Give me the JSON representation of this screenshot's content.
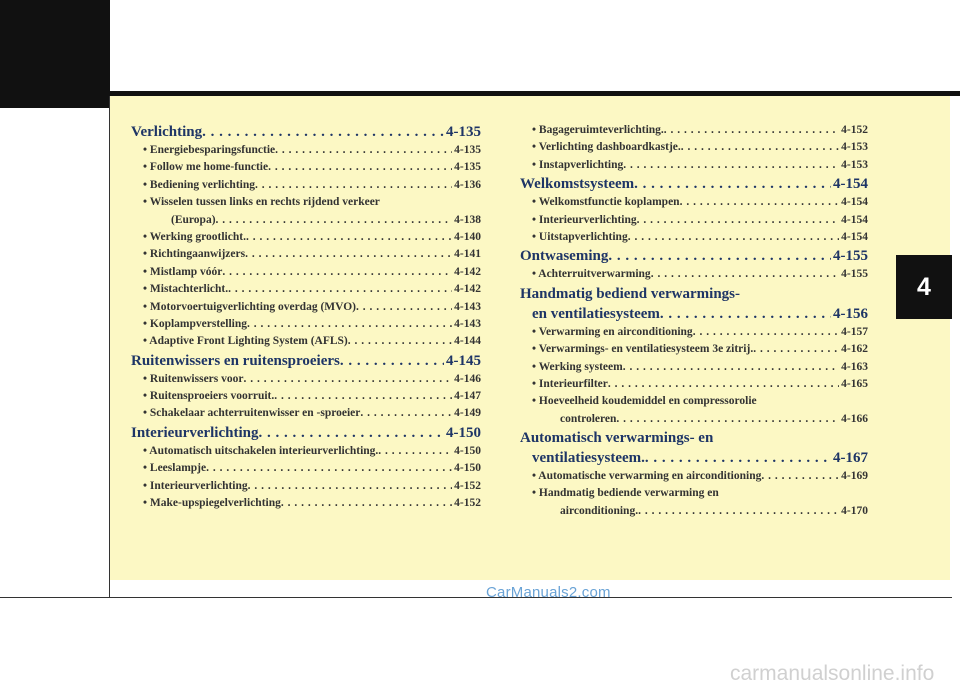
{
  "chapter_tab": "4",
  "left_column": [
    {
      "type": "heading",
      "label": "Verlichting",
      "page": "4-135"
    },
    {
      "type": "item",
      "label": "• Energiebesparingsfunctie",
      "page": "4-135"
    },
    {
      "type": "item",
      "label": "• Follow me home-functie",
      "page": "4-135"
    },
    {
      "type": "item",
      "label": "• Bediening verlichting",
      "page": "4-136"
    },
    {
      "type": "item-line1",
      "label": "• Wisselen tussen links en rechts rijdend verkeer"
    },
    {
      "type": "item-cont",
      "label": "(Europa)",
      "page": "4-138"
    },
    {
      "type": "item",
      "label": "• Werking grootlicht.",
      "page": "4-140"
    },
    {
      "type": "item",
      "label": "• Richtingaanwijzers",
      "page": "4-141"
    },
    {
      "type": "item",
      "label": "• Mistlamp vóór",
      "page": "4-142"
    },
    {
      "type": "item",
      "label": "• Mistachterlicht.",
      "page": "4-142"
    },
    {
      "type": "item",
      "label": "• Motorvoertuigverlichting overdag (MVO)",
      "page": "4-143"
    },
    {
      "type": "item",
      "label": "• Koplampverstelling",
      "page": "4-143"
    },
    {
      "type": "item",
      "label": "• Adaptive Front Lighting System (AFLS)",
      "page": "4-144"
    },
    {
      "type": "heading",
      "label": "Ruitenwissers en ruitensproeiers",
      "page": "4-145"
    },
    {
      "type": "item",
      "label": "• Ruitenwissers voor",
      "page": "4-146"
    },
    {
      "type": "item",
      "label": "• Ruitensproeiers voorruit.",
      "page": "4-147"
    },
    {
      "type": "item",
      "label": "• Schakelaar achterruitenwisser en -sproeier",
      "page": "4-149"
    },
    {
      "type": "heading",
      "label": "Interieurverlichting",
      "page": "4-150"
    },
    {
      "type": "item",
      "label": "• Automatisch uitschakelen interieurverlichting.",
      "page": "4-150"
    },
    {
      "type": "item",
      "label": "• Leeslampje",
      "page": "4-150"
    },
    {
      "type": "item",
      "label": "• Interieurverlichting",
      "page": "4-152"
    },
    {
      "type": "item",
      "label": "• Make-upspiegelverlichting",
      "page": "4-152"
    }
  ],
  "right_column": [
    {
      "type": "item",
      "label": "• Bagageruimteverlichting.",
      "page": "4-152"
    },
    {
      "type": "item",
      "label": "• Verlichting dashboardkastje.",
      "page": "4-153"
    },
    {
      "type": "item",
      "label": "• Instapverlichting",
      "page": "4-153"
    },
    {
      "type": "heading",
      "label": "Welkomstsysteem",
      "page": "4-154"
    },
    {
      "type": "item",
      "label": "• Welkomstfunctie koplampen",
      "page": "4-154"
    },
    {
      "type": "item",
      "label": "• Interieurverlichting",
      "page": "4-154"
    },
    {
      "type": "item",
      "label": "• Uitstapverlichting",
      "page": "4-154"
    },
    {
      "type": "heading",
      "label": "Ontwaseming",
      "page": "4-155"
    },
    {
      "type": "item",
      "label": "• Achterruitverwarming",
      "page": "4-155"
    },
    {
      "type": "heading-line1",
      "label": "Handmatig bediend verwarmings-"
    },
    {
      "type": "heading-cont",
      "label": "en ventilatiesysteem",
      "page": "4-156"
    },
    {
      "type": "item",
      "label": "• Verwarming en airconditioning",
      "page": "4-157"
    },
    {
      "type": "item",
      "label": "• Verwarmings- en ventilatiesysteem 3e zitrij.",
      "page": "4-162"
    },
    {
      "type": "item",
      "label": "• Werking systeem",
      "page": "4-163"
    },
    {
      "type": "item",
      "label": "• Interieurfilter",
      "page": "4-165"
    },
    {
      "type": "item-line1",
      "label": "• Hoeveelheid koudemiddel en compressorolie"
    },
    {
      "type": "item-cont",
      "label": "controleren",
      "page": "4-166"
    },
    {
      "type": "heading-line1",
      "label": "Automatisch verwarmings- en"
    },
    {
      "type": "heading-cont",
      "label": "ventilatiesysteem.",
      "page": "4-167"
    },
    {
      "type": "item",
      "label": "• Automatische verwarming en airconditioning",
      "page": "4-169"
    },
    {
      "type": "item-line1",
      "label": "• Handmatig bediende verwarming en"
    },
    {
      "type": "item-cont",
      "label": "airconditioning.",
      "page": "4-170"
    }
  ],
  "watermark": "CarManuals2.com",
  "footer_mark": "carmanualsonline.info"
}
